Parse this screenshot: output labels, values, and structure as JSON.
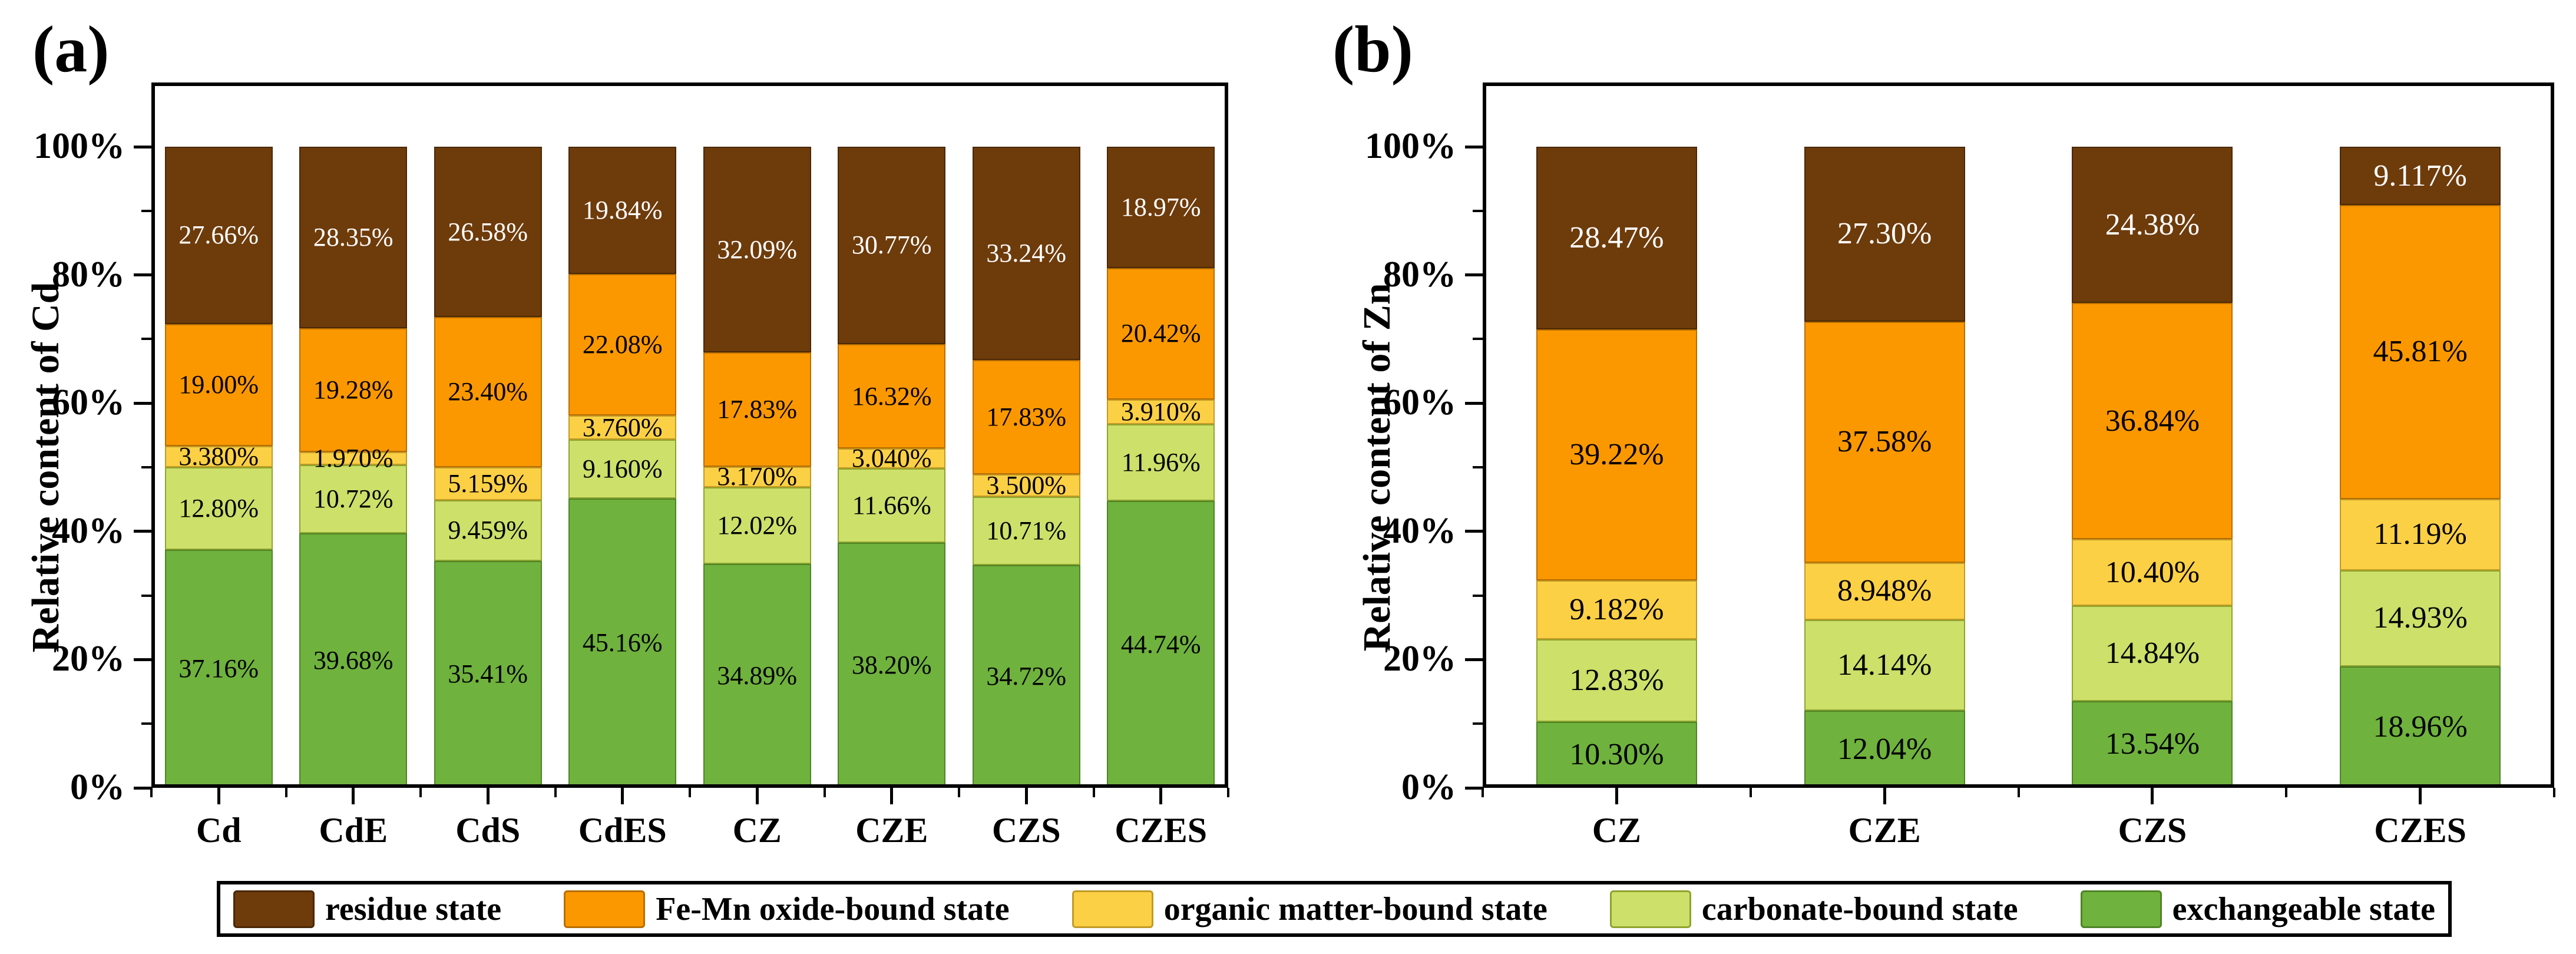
{
  "figure": {
    "background": "#ffffff",
    "panels": [
      {
        "letter": "(a)",
        "y_axis_title": "Relative content of Cd",
        "x_tick_labels": [
          "Cd",
          "CdE",
          "CdS",
          "CdES",
          "CZ",
          "CZE",
          "CZS",
          "CZES"
        ],
        "y_tick_labels": [
          "0%",
          "20%",
          "40%",
          "60%",
          "80%",
          "100%"
        ]
      },
      {
        "letter": "(b)",
        "y_axis_title": "Relative content of Zn",
        "x_tick_labels": [
          "CZ",
          "CZE",
          "CZS",
          "CZES"
        ],
        "y_tick_labels": [
          "0%",
          "20%",
          "40%",
          "60%",
          "80%",
          "100%"
        ]
      }
    ],
    "legend": {
      "items": [
        {
          "label": "residue state",
          "color": "#6E3B0B",
          "border": "#4A2806"
        },
        {
          "label": "Fe-Mn oxide-bound state",
          "color": "#FB9800",
          "border": "#B86E00"
        },
        {
          "label": "organic matter-bound state",
          "color": "#FCD045",
          "border": "#C19A25"
        },
        {
          "label": "carbonate-bound state",
          "color": "#CCE06A",
          "border": "#8FA32E"
        },
        {
          "label": "exchangeable state",
          "color": "#6FB23D",
          "border": "#4E8427"
        }
      ]
    }
  },
  "chart_data": [
    {
      "type": "bar",
      "stacked": true,
      "panel": "(a)",
      "ylabel": "Relative content of Cd",
      "ylim": [
        0,
        100
      ],
      "y_ticks_pct": [
        0,
        20,
        40,
        60,
        80,
        100
      ],
      "y_minor_ticks_pct": [
        10,
        30,
        50,
        70,
        90
      ],
      "grid": false,
      "legend_position": "bottom",
      "categories": [
        "Cd",
        "CdE",
        "CdS",
        "CdES",
        "CZ",
        "CZE",
        "CZS",
        "CZES"
      ],
      "series": [
        {
          "name": "exchangeable state",
          "color": "#6FB23D",
          "border": "#4E8427",
          "label_color": "#000000",
          "values": [
            37.16,
            39.68,
            35.41,
            45.16,
            34.89,
            38.2,
            34.72,
            44.74
          ],
          "labels": [
            "37.16%",
            "39.68%",
            "35.41%",
            "45.16%",
            "34.89%",
            "38.20%",
            "34.72%",
            "44.74%"
          ]
        },
        {
          "name": "carbonate-bound state",
          "color": "#CCE06A",
          "border": "#8FA32E",
          "label_color": "#000000",
          "values": [
            12.8,
            10.72,
            9.459,
            9.16,
            12.02,
            11.66,
            10.71,
            11.96
          ],
          "labels": [
            "12.80%",
            "10.72%",
            "9.459%",
            "9.160%",
            "12.02%",
            "11.66%",
            "10.71%",
            "11.96%"
          ]
        },
        {
          "name": "organic matter-bound state",
          "color": "#FCD045",
          "border": "#C19A25",
          "label_color": "#000000",
          "values": [
            3.38,
            1.97,
            5.159,
            3.76,
            3.17,
            3.04,
            3.5,
            3.91
          ],
          "labels": [
            "3.380%",
            "1.970%",
            "5.159%",
            "3.760%",
            "3.170%",
            "3.040%",
            "3.500%",
            "3.910%"
          ]
        },
        {
          "name": "Fe-Mn oxide-bound state",
          "color": "#FB9800",
          "border": "#B86E00",
          "label_color": "#000000",
          "values": [
            19.0,
            19.28,
            23.4,
            22.08,
            17.83,
            16.32,
            17.83,
            20.42
          ],
          "labels": [
            "19.00%",
            "19.28%",
            "23.40%",
            "22.08%",
            "17.83%",
            "16.32%",
            "17.83%",
            "20.42%"
          ]
        },
        {
          "name": "residue state",
          "color": "#6E3B0B",
          "border": "#4A2806",
          "label_color": "#FFFFFF",
          "values": [
            27.66,
            28.35,
            26.58,
            19.84,
            32.09,
            30.77,
            33.24,
            18.97
          ],
          "labels": [
            "27.66%",
            "28.35%",
            "26.58%",
            "19.84%",
            "32.09%",
            "30.77%",
            "33.24%",
            "18.97%"
          ]
        }
      ]
    },
    {
      "type": "bar",
      "stacked": true,
      "panel": "(b)",
      "ylabel": "Relative content of Zn",
      "ylim": [
        0,
        100
      ],
      "y_ticks_pct": [
        0,
        20,
        40,
        60,
        80,
        100
      ],
      "y_minor_ticks_pct": [
        10,
        30,
        50,
        70,
        90
      ],
      "grid": false,
      "legend_position": "bottom",
      "categories": [
        "CZ",
        "CZE",
        "CZS",
        "CZES"
      ],
      "series": [
        {
          "name": "exchangeable state",
          "color": "#6FB23D",
          "border": "#4E8427",
          "label_color": "#000000",
          "values": [
            10.3,
            12.04,
            13.54,
            18.96
          ],
          "labels": [
            "10.30%",
            "12.04%",
            "13.54%",
            "18.96%"
          ]
        },
        {
          "name": "carbonate-bound state",
          "color": "#CCE06A",
          "border": "#8FA32E",
          "label_color": "#000000",
          "values": [
            12.83,
            14.14,
            14.84,
            14.93
          ],
          "labels": [
            "12.83%",
            "14.14%",
            "14.84%",
            "14.93%"
          ]
        },
        {
          "name": "organic matter-bound state",
          "color": "#FCD045",
          "border": "#C19A25",
          "label_color": "#000000",
          "values": [
            9.182,
            8.948,
            10.4,
            11.19
          ],
          "labels": [
            "9.182%",
            "8.948%",
            "10.40%",
            "11.19%"
          ]
        },
        {
          "name": "Fe-Mn oxide-bound state",
          "color": "#FB9800",
          "border": "#B86E00",
          "label_color": "#000000",
          "values": [
            39.22,
            37.58,
            36.84,
            45.81
          ],
          "labels": [
            "39.22%",
            "37.58%",
            "36.84%",
            "45.81%"
          ]
        },
        {
          "name": "residue state",
          "color": "#6E3B0B",
          "border": "#4A2806",
          "label_color": "#FFFFFF",
          "values": [
            28.47,
            27.3,
            24.38,
            9.117
          ],
          "labels": [
            "28.47%",
            "27.30%",
            "24.38%",
            "9.117%"
          ]
        }
      ]
    }
  ]
}
